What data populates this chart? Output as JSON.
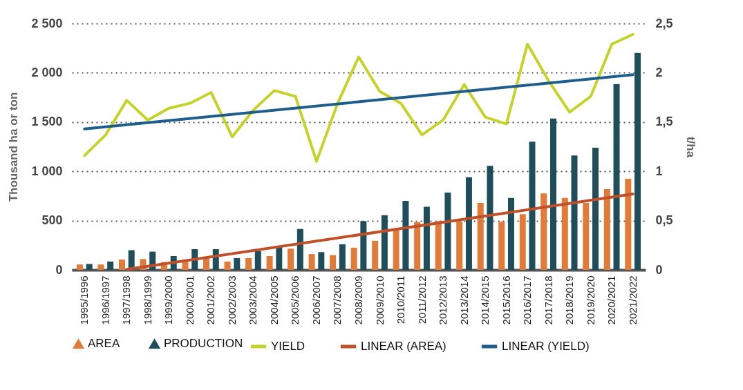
{
  "chart_data": {
    "type": "bar",
    "ylabel": "Thousand ha or ton",
    "y2label": "t/ha",
    "categories": [
      "1995/1996",
      "1996/1997",
      "1997/1998",
      "1998/1999",
      "1999/2000",
      "2000/2001",
      "2001/2002",
      "2002/2003",
      "2003/2004",
      "2004/2005",
      "2005/2006",
      "2006/2007",
      "2007/2008",
      "2008/2009",
      "2009/2010",
      "2010/2011",
      "2011/2012",
      "2012/2013",
      "2013/2014",
      "2014/2015",
      "2015/2016",
      "2016/2017",
      "2017/2018",
      "2018/2019",
      "2019/2020",
      "2020/2021",
      "2021/2022"
    ],
    "series": [
      {
        "name": "AREA",
        "color": "#e07b39",
        "values": [
          55,
          55,
          105,
          110,
          80,
          105,
          120,
          85,
          120,
          140,
          215,
          160,
          150,
          225,
          295,
          400,
          485,
          495,
          490,
          680,
          490,
          565,
          775,
          730,
          680,
          820,
          925
        ]
      },
      {
        "name": "PRODUCTION",
        "color": "#1f4e5a",
        "values": [
          60,
          85,
          200,
          185,
          140,
          210,
          210,
          120,
          190,
          240,
          415,
          180,
          260,
          495,
          555,
          700,
          640,
          785,
          940,
          1055,
          730,
          1300,
          1535,
          1160,
          1240,
          1885,
          2200
        ]
      },
      {
        "name": "YIELD",
        "type": "line",
        "axis": "y2",
        "color": "#c5d22a",
        "values": [
          1.16,
          1.37,
          1.72,
          1.52,
          1.64,
          1.69,
          1.8,
          1.35,
          1.62,
          1.82,
          1.76,
          1.1,
          1.69,
          2.16,
          1.81,
          1.69,
          1.37,
          1.52,
          1.88,
          1.55,
          1.48,
          2.29,
          1.92,
          1.6,
          1.76,
          2.29,
          2.39
        ]
      },
      {
        "name": "LINEAR (AREA)",
        "type": "line",
        "color": "#c0502a",
        "x": [
          "1997/1998",
          "2021/2022"
        ],
        "values": [
          5,
          770
        ]
      },
      {
        "name": "LINEAR (YIELD)",
        "type": "line",
        "axis": "y2",
        "color": "#1e5d8c",
        "x": [
          "1995/1996",
          "2021/2022"
        ],
        "values": [
          1.43,
          1.98
        ]
      }
    ],
    "ylim": [
      0,
      2500
    ],
    "yticks": [
      0,
      500,
      {
        "value": 1000,
        "label": "1 000"
      },
      {
        "value": 1500,
        "label": "1 500"
      },
      {
        "value": 2000,
        "label": "2 000"
      },
      {
        "value": 2500,
        "label": "2 500"
      }
    ],
    "y2lim": [
      0,
      2.5
    ],
    "y2ticks": [
      0,
      {
        "value": 0.5,
        "label": "0,5"
      },
      1,
      {
        "value": 1.5,
        "label": "1,5"
      },
      2,
      {
        "value": 2.5,
        "label": "2,5"
      }
    ],
    "grid": "y",
    "legend": "bottom"
  }
}
